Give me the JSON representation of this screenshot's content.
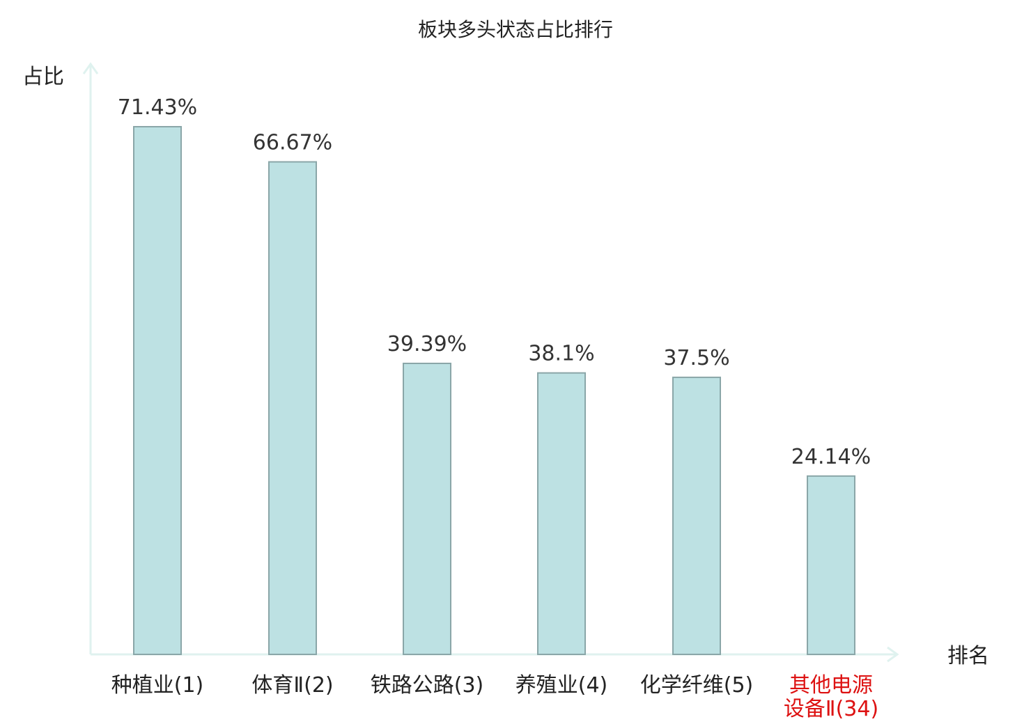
{
  "chart_data": {
    "type": "bar",
    "title": "板块多头状态占比排行",
    "ylabel": "占比",
    "xlabel": "排名",
    "categories": [
      "种植业(1)",
      "体育Ⅱ(2)",
      "铁路公路(3)",
      "养殖业(4)",
      "化学纤维(5)",
      "其他电源设备Ⅱ(34)"
    ],
    "category_lines": [
      [
        "种植业(1)"
      ],
      [
        "体育Ⅱ(2)"
      ],
      [
        "铁路公路(3)"
      ],
      [
        "养殖业(4)"
      ],
      [
        "化学纤维(5)"
      ],
      [
        "其他电源",
        "设备Ⅱ(34)"
      ]
    ],
    "values": [
      71.43,
      66.67,
      39.39,
      38.1,
      37.5,
      24.14
    ],
    "value_labels": [
      "71.43%",
      "66.67%",
      "39.39%",
      "38.1%",
      "37.5%",
      "24.14%"
    ],
    "highlight_index": 5,
    "ylim": [
      0,
      80
    ],
    "grid": false,
    "colors": {
      "bar_fill": "#bde1e3",
      "bar_stroke": "#8aa6a8",
      "axis": "#dff2ef",
      "highlight_text": "#dd1111"
    }
  }
}
